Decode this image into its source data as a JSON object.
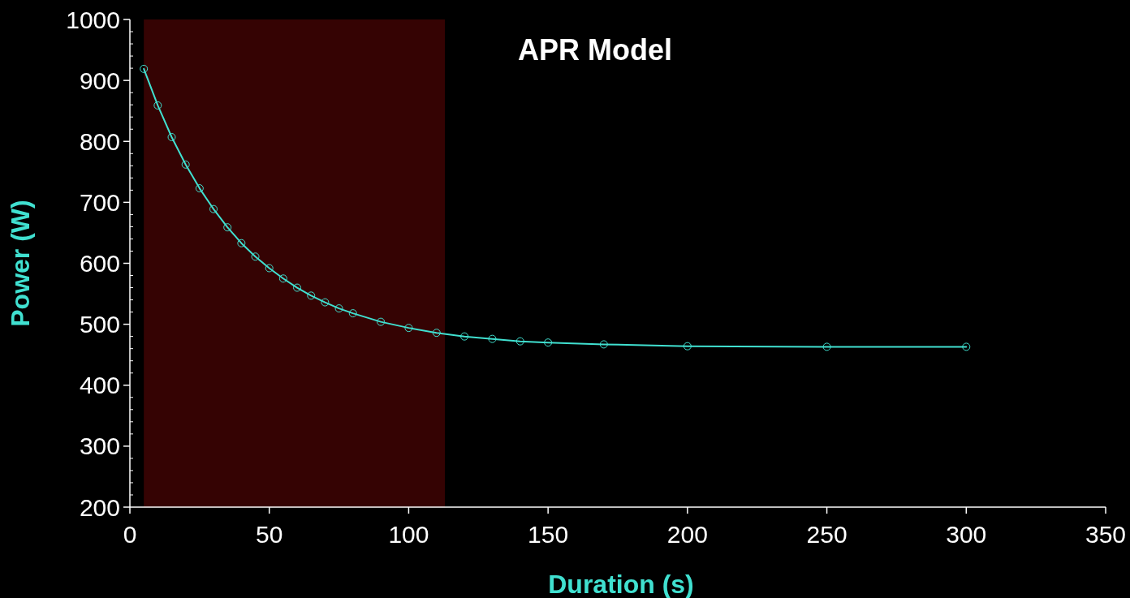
{
  "chart_data": {
    "type": "line",
    "title": "APR Model",
    "xlabel": "Duration (s)",
    "ylabel": "Power (W)",
    "xlim": [
      0,
      350
    ],
    "xticks": [
      0,
      50,
      100,
      150,
      200,
      250,
      300,
      350
    ],
    "ylim": [
      200,
      1000
    ],
    "yticks": [
      200,
      300,
      400,
      500,
      600,
      700,
      800,
      900,
      1000
    ],
    "grid": false,
    "marker": "circle",
    "line_style": "solid",
    "bands": [
      {
        "axis": "x",
        "from": 5,
        "to": 113,
        "color": "#350303"
      }
    ],
    "series": [
      {
        "color": "#40e0d0",
        "x": [
          5,
          10,
          15,
          20,
          25,
          30,
          35,
          40,
          45,
          50,
          55,
          60,
          65,
          70,
          75,
          80,
          90,
          100,
          110,
          120,
          130,
          140,
          150,
          170,
          200,
          250,
          300
        ],
        "values": [
          919,
          859,
          807,
          762,
          723,
          689,
          659,
          633,
          611,
          592,
          575,
          560,
          547,
          536,
          526,
          518,
          504,
          494,
          486,
          480,
          476,
          472,
          470,
          467,
          464,
          463,
          463
        ]
      }
    ]
  }
}
